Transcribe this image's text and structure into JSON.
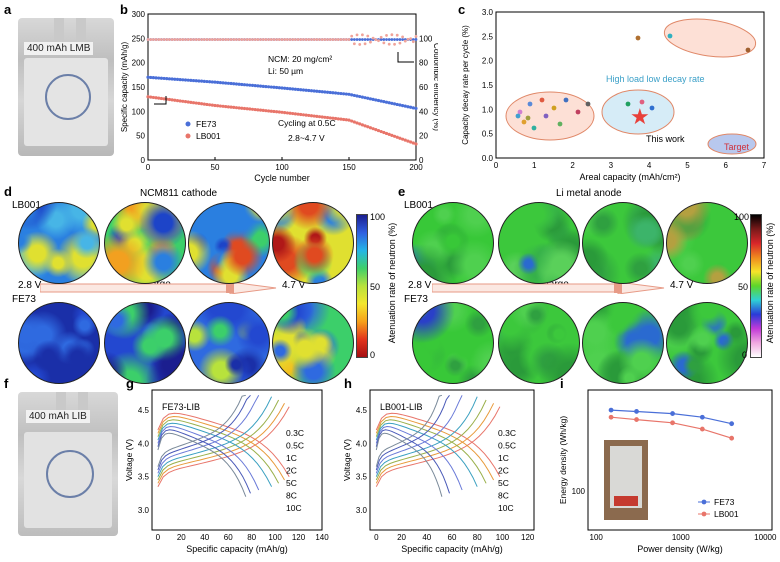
{
  "panels": {
    "a": {
      "letter": "a",
      "photo_label": "400 mAh LMB"
    },
    "b": {
      "letter": "b",
      "ylabel_left": "Specific capacity (mAh/g)",
      "ylabel_right": "Coulombic efficiency (%)",
      "xlabel": "Cycle number",
      "note1": "NCM: 20 mg/cm²",
      "note2": "Li: 50 µm",
      "cycling": "Cycling at 0.5C",
      "voltage": "2.8~4.7 V",
      "legend": [
        "FE73",
        "LB001"
      ],
      "yticks_left": [
        "0",
        "50",
        "100",
        "150",
        "200",
        "250",
        "300"
      ],
      "yticks_right": [
        "0",
        "20",
        "40",
        "60",
        "80",
        "100"
      ],
      "xticks": [
        "0",
        "50",
        "100",
        "150",
        "200"
      ]
    },
    "c": {
      "letter": "c",
      "ylabel": "Capacity decay rate per cycle (%)",
      "xlabel": "Areal capacity (mAh/cm²)",
      "ann1": "High load low decay rate",
      "ann2": "This work",
      "ann3": "Target",
      "xticks": [
        "0",
        "1",
        "2",
        "3",
        "4",
        "5",
        "6",
        "7"
      ],
      "yticks": [
        "0.0",
        "0.5",
        "1.0",
        "1.5",
        "2.0",
        "2.5",
        "3.0"
      ]
    },
    "d": {
      "letter": "d",
      "title": "NCM811 cathode",
      "row1": "LB001",
      "row2": "FE73",
      "v_start": "2.8 V",
      "v_end": "4.7 V",
      "charge": "Charge",
      "cb_label": "Atenuation rate of neutron  (%)",
      "cb_ticks": [
        "100",
        "50",
        "0"
      ]
    },
    "e": {
      "letter": "e",
      "title": "Li metal anode",
      "row1": "LB001",
      "row2": "FE73",
      "v_start": "2.8 V",
      "v_end": "4.7 V",
      "charge": "Charge",
      "cb_label": "Atenuation rate of neutron  (%)",
      "cb_ticks": [
        "100",
        "50",
        "0"
      ]
    },
    "f": {
      "letter": "f",
      "photo_label": "400 mAh LIB"
    },
    "g": {
      "letter": "g",
      "title": "FE73-LIB",
      "ylabel": "Voltage (V)",
      "xlabel": "Specific capacity (mAh/g)",
      "rates": [
        "0.3C",
        "0.5C",
        "1C",
        "2C",
        "5C",
        "8C",
        "10C"
      ],
      "xticks": [
        "0",
        "20",
        "40",
        "60",
        "80",
        "100",
        "120",
        "140"
      ],
      "yticks": [
        "3.0",
        "3.5",
        "4.0",
        "4.5"
      ]
    },
    "h": {
      "letter": "h",
      "title": "LB001-LIB",
      "ylabel": "Voltage (V)",
      "xlabel": "Specific capacity (mAh/g)",
      "rates": [
        "0.3C",
        "0.5C",
        "1C",
        "2C",
        "5C",
        "8C",
        "10C"
      ],
      "xticks": [
        "0",
        "20",
        "40",
        "60",
        "80",
        "100",
        "120"
      ],
      "yticks": [
        "3.0",
        "3.5",
        "4.0",
        "4.5"
      ]
    },
    "i": {
      "letter": "i",
      "ylabel": "Energy density (Wh/kg)",
      "xlabel": "Power density (W/kg)",
      "legend": [
        "FE73",
        "LB001"
      ],
      "xticks": [
        "100",
        "1000",
        "10000"
      ],
      "yticks": [
        "100"
      ]
    }
  },
  "chart_data": [
    {
      "type": "scatter",
      "panel": "b",
      "x": [
        0,
        50,
        100,
        150,
        200
      ],
      "series": [
        {
          "name": "FE73",
          "values": [
            170,
            160,
            148,
            135,
            106
          ]
        },
        {
          "name": "LB001",
          "values": [
            130,
            112,
            98,
            82,
            33
          ]
        },
        {
          "name": "FE73 CE",
          "values": [
            99,
            99,
            99,
            99,
            99
          ]
        },
        {
          "name": "LB001 CE",
          "values": [
            99,
            99,
            99,
            100,
            98
          ]
        }
      ],
      "xlim": [
        0,
        200
      ],
      "ylim_left": [
        0,
        300
      ],
      "ylim_right": [
        0,
        120
      ]
    },
    {
      "type": "line",
      "panel": "g",
      "rates": [
        "0.3C",
        "0.5C",
        "1C",
        "2C",
        "5C",
        "8C",
        "10C"
      ],
      "capacity_max": [
        112,
        108,
        103,
        97,
        86,
        79,
        75
      ],
      "ylim": [
        2.7,
        4.8
      ],
      "xlim": [
        -5,
        140
      ]
    },
    {
      "type": "line",
      "panel": "h",
      "rates": [
        "0.3C",
        "0.5C",
        "1C",
        "2C",
        "5C",
        "8C",
        "10C"
      ],
      "capacity_max": [
        98,
        93,
        87,
        80,
        68,
        58,
        52
      ],
      "ylim": [
        2.7,
        4.8
      ],
      "xlim": [
        -5,
        125
      ]
    },
    {
      "type": "line",
      "panel": "i",
      "x": [
        150,
        300,
        800,
        1800,
        4000
      ],
      "series": [
        {
          "name": "FE73",
          "values": [
            420,
            410,
            395,
            370,
            330
          ]
        },
        {
          "name": "LB001",
          "values": [
            370,
            355,
            335,
            300,
            255
          ]
        }
      ]
    }
  ],
  "colors": {
    "blue": "#4a6fd8",
    "red": "#e8756a",
    "pink": "#f0a39a"
  }
}
